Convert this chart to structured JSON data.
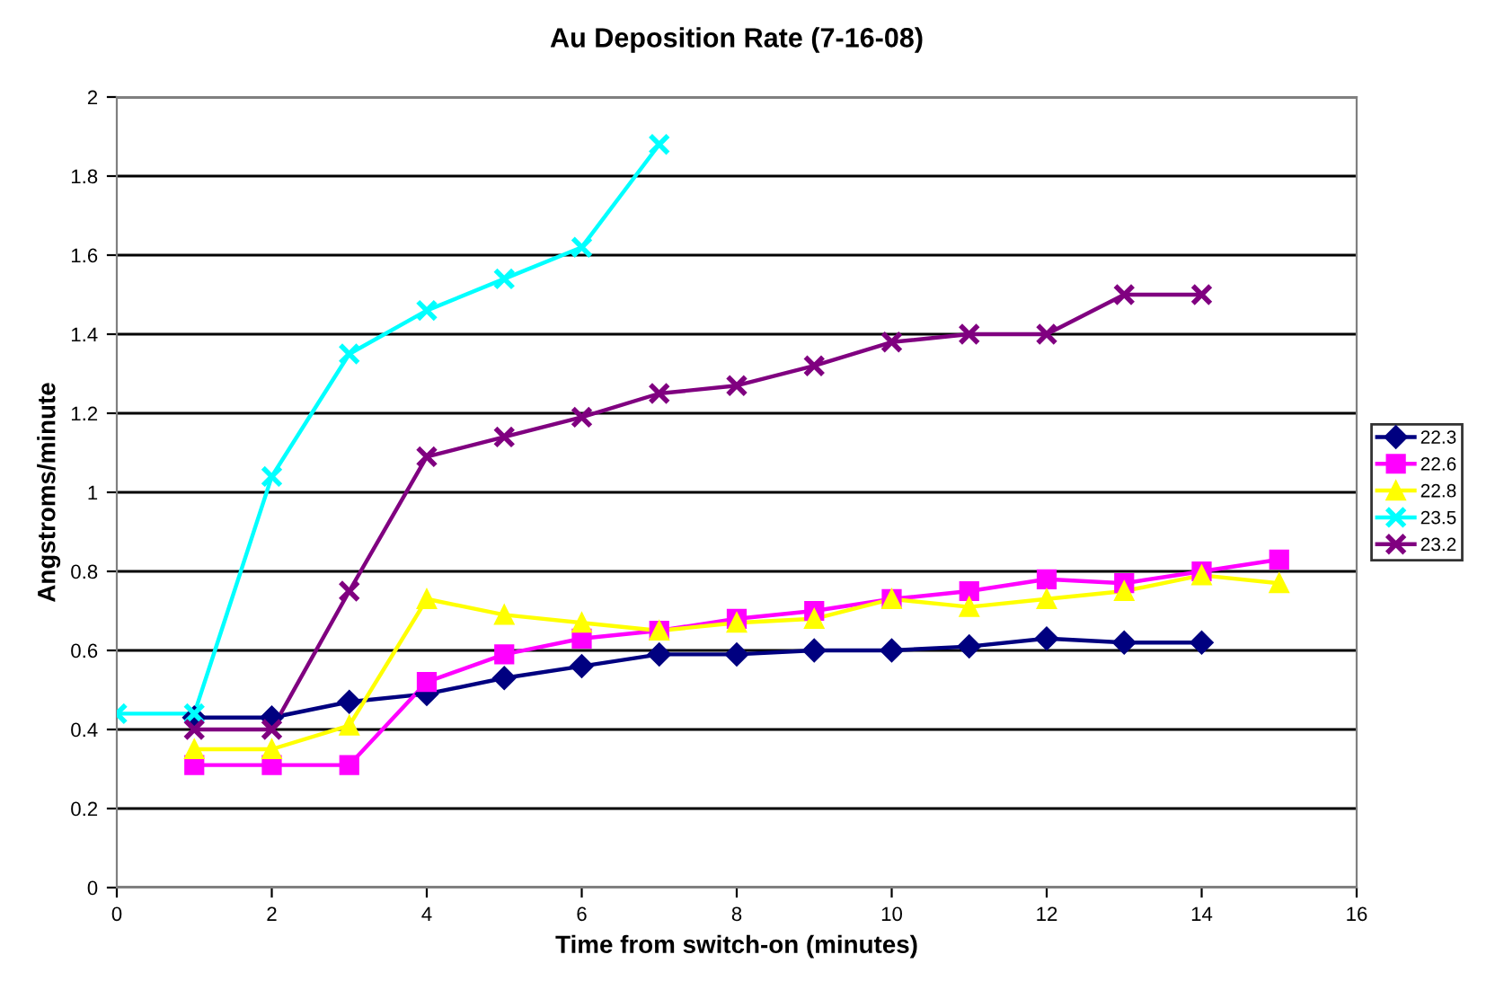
{
  "chart_data": {
    "type": "line",
    "title": "Au Deposition Rate (7-16-08)",
    "xlabel": "Time from switch-on (minutes)",
    "ylabel": "Angstroms/minute",
    "xlim": [
      0,
      16
    ],
    "xticks": [
      0,
      2,
      4,
      6,
      8,
      10,
      12,
      14,
      16
    ],
    "ylim": [
      0,
      2
    ],
    "yticks": [
      0,
      0.2,
      0.4,
      0.6,
      0.8,
      1,
      1.2,
      1.4,
      1.6,
      1.8,
      2
    ],
    "grid": "y",
    "legend": "right",
    "series": [
      {
        "name": "22.3",
        "color": "#000080",
        "marker": "diamond",
        "x": [
          1,
          2,
          3,
          4,
          5,
          6,
          7,
          8,
          9,
          10,
          11,
          12,
          13,
          14
        ],
        "values": [
          0.43,
          0.43,
          0.47,
          0.49,
          0.53,
          0.56,
          0.59,
          0.59,
          0.6,
          0.6,
          0.61,
          0.63,
          0.62,
          0.62
        ]
      },
      {
        "name": "22.6",
        "color": "#ff00ff",
        "marker": "square",
        "x": [
          1,
          2,
          3,
          4,
          5,
          6,
          7,
          8,
          9,
          10,
          11,
          12,
          13,
          14,
          15
        ],
        "values": [
          0.31,
          0.31,
          0.31,
          0.52,
          0.59,
          0.63,
          0.65,
          0.68,
          0.7,
          0.73,
          0.75,
          0.78,
          0.77,
          0.8,
          0.83
        ]
      },
      {
        "name": "22.8",
        "color": "#ffff00",
        "marker": "triangle",
        "x": [
          1,
          2,
          3,
          4,
          5,
          6,
          7,
          8,
          9,
          10,
          11,
          12,
          13,
          14,
          15
        ],
        "values": [
          0.35,
          0.35,
          0.41,
          0.73,
          0.69,
          0.67,
          0.65,
          0.67,
          0.68,
          0.73,
          0.71,
          0.73,
          0.75,
          0.79,
          0.77
        ]
      },
      {
        "name": "23.5",
        "color": "#00ffff",
        "marker": "cross",
        "x": [
          0,
          1,
          2,
          3,
          4,
          5,
          6,
          7
        ],
        "values": [
          0.44,
          0.44,
          1.04,
          1.35,
          1.46,
          1.54,
          1.62,
          1.88
        ]
      },
      {
        "name": "23.2",
        "color": "#800080",
        "marker": "cross",
        "x": [
          1,
          2,
          3,
          4,
          5,
          6,
          7,
          8,
          9,
          10,
          11,
          12,
          13,
          14
        ],
        "values": [
          0.4,
          0.4,
          0.75,
          1.09,
          1.14,
          1.19,
          1.25,
          1.27,
          1.32,
          1.38,
          1.4,
          1.4,
          1.5,
          1.5
        ]
      }
    ]
  }
}
